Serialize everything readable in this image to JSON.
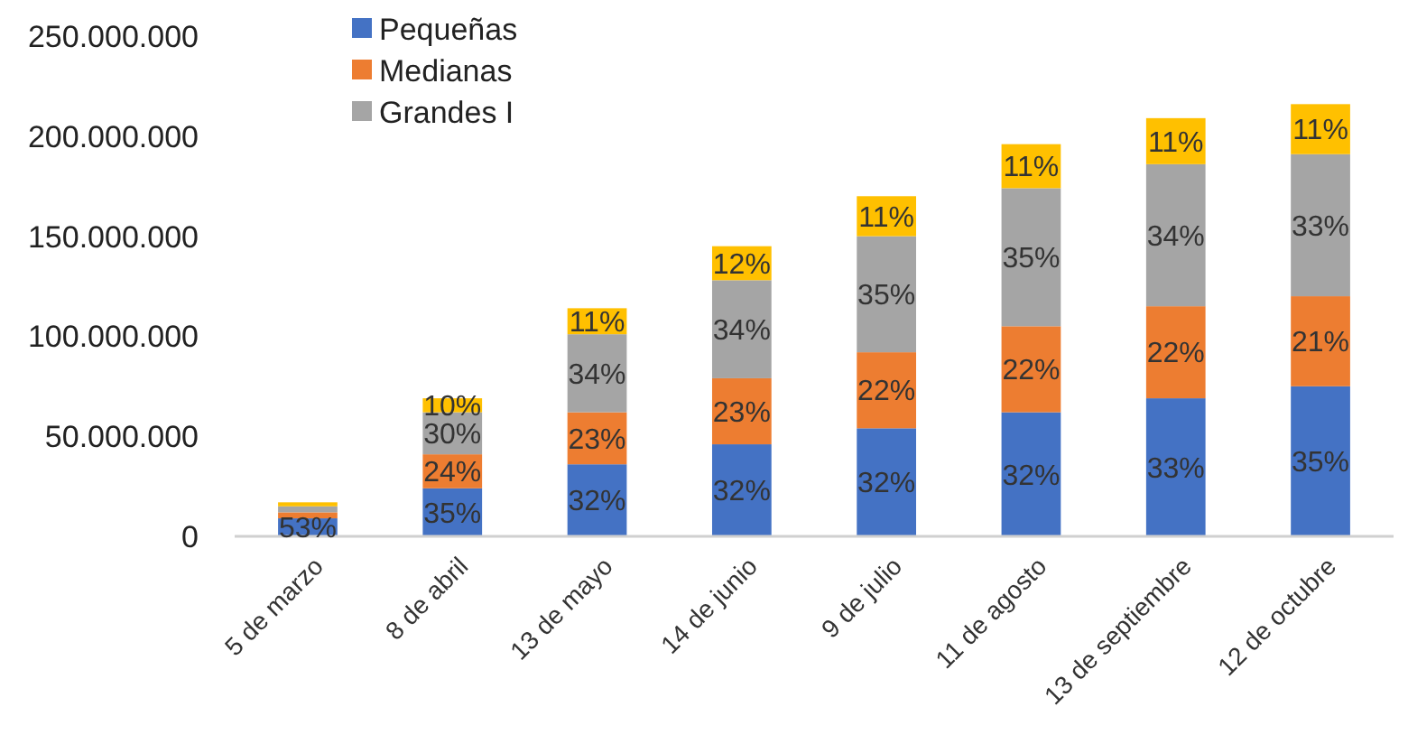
{
  "chart_data": {
    "type": "bar",
    "stacked": true,
    "categories": [
      "5 de marzo",
      "8 de abril",
      "13 de mayo",
      "14 de junio",
      "9 de julio",
      "11 de agosto",
      "13 de septiembre",
      "12 de octubre"
    ],
    "series": [
      {
        "name": "Pequeñas",
        "color": "#4472c4",
        "values": [
          9000000,
          24000000,
          36000000,
          46000000,
          54000000,
          62000000,
          69000000,
          75000000
        ]
      },
      {
        "name": "Medianas",
        "color": "#ed7d31",
        "values": [
          3000000,
          17000000,
          26000000,
          33000000,
          38000000,
          43000000,
          46000000,
          45000000
        ]
      },
      {
        "name": "Grandes I",
        "color": "#a5a5a5",
        "values": [
          3000000,
          21000000,
          39000000,
          49000000,
          58000000,
          69000000,
          71000000,
          71000000
        ]
      },
      {
        "color": "#ffc000",
        "values": [
          2000000,
          7000000,
          13000000,
          17000000,
          20000000,
          22000000,
          23000000,
          25000000
        ]
      }
    ],
    "annotations": [
      "53%",
      "35%",
      "24%",
      "30%",
      "10%",
      "32%",
      "23%",
      "34%",
      "11%",
      "32%",
      "23%",
      "34%",
      "12%",
      "32%",
      "22%",
      "35%",
      "11%",
      "32%",
      "22%",
      "35%",
      "11%",
      "33%",
      "22%",
      "34%",
      "11%",
      "35%",
      "21%",
      "33%",
      "11%"
    ],
    "ylim": [
      0,
      250000000
    ],
    "yticks": [
      {
        "value": 0,
        "label": "0"
      },
      {
        "value": 50000000,
        "label": "50.000.000"
      },
      {
        "value": 100000000,
        "label": "100.000.000"
      },
      {
        "value": 150000000,
        "label": "150.000.000"
      },
      {
        "value": 200000000,
        "label": "200.000.000"
      },
      {
        "value": 250000000,
        "label": "250.000.000"
      }
    ],
    "grid": false,
    "legend": "top left"
  }
}
